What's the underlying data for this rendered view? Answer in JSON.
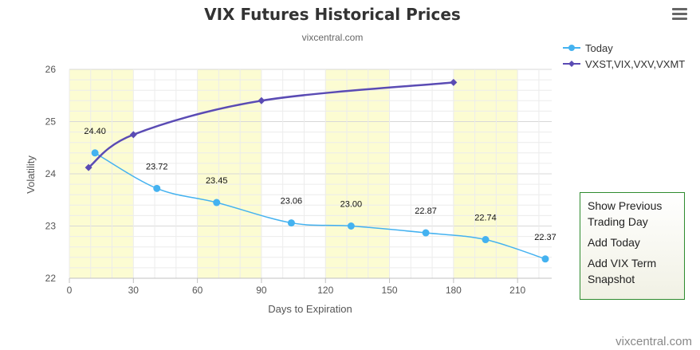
{
  "header": {
    "title": "VIX Futures Historical Prices",
    "subtitle": "vixcentral.com"
  },
  "legend": [
    {
      "label": "Today",
      "color": "#44b2f0"
    },
    {
      "label": "VXST,VIX,VXV,VXMT",
      "color": "#5a4bb4"
    }
  ],
  "buttons": {
    "show_previous_line1": "Show Previous",
    "show_previous_line2": "Trading Day",
    "add_today": "Add Today",
    "add_term_line1": "Add VIX Term",
    "add_term_line2": "Snapshot"
  },
  "watermark": "vixcentral.com",
  "menu_icon": "hamburger-menu-icon",
  "chart_data": {
    "type": "line",
    "title": "VIX Futures Historical Prices",
    "subtitle": "vixcentral.com",
    "xlabel": "Days to Expiration",
    "ylabel": "Volatility",
    "xlim": [
      0,
      226
    ],
    "ylim": [
      22,
      26
    ],
    "x_ticks": [
      0,
      30,
      60,
      90,
      120,
      150,
      180,
      210
    ],
    "y_ticks": [
      22,
      23,
      24,
      25,
      26
    ],
    "shaded_bands": [
      [
        0,
        30
      ],
      [
        60,
        90
      ],
      [
        120,
        150
      ],
      [
        180,
        210
      ]
    ],
    "band_color": "#fcfcd2",
    "grid": true,
    "legend_position": "top-right",
    "series": [
      {
        "name": "Today",
        "color": "#44b2f0",
        "marker": "circle",
        "x": [
          12,
          41,
          69,
          104,
          132,
          167,
          195,
          223
        ],
        "y": [
          24.4,
          23.72,
          23.45,
          23.06,
          23.0,
          22.87,
          22.74,
          22.37
        ],
        "labels": [
          "24.40",
          "23.72",
          "23.45",
          "23.06",
          "23.00",
          "22.87",
          "22.74",
          "22.37"
        ]
      },
      {
        "name": "VXST,VIX,VXV,VXMT",
        "color": "#5a4bb4",
        "marker": "diamond",
        "x": [
          9,
          30,
          90,
          180
        ],
        "y": [
          24.12,
          24.75,
          25.4,
          25.75
        ]
      }
    ]
  }
}
